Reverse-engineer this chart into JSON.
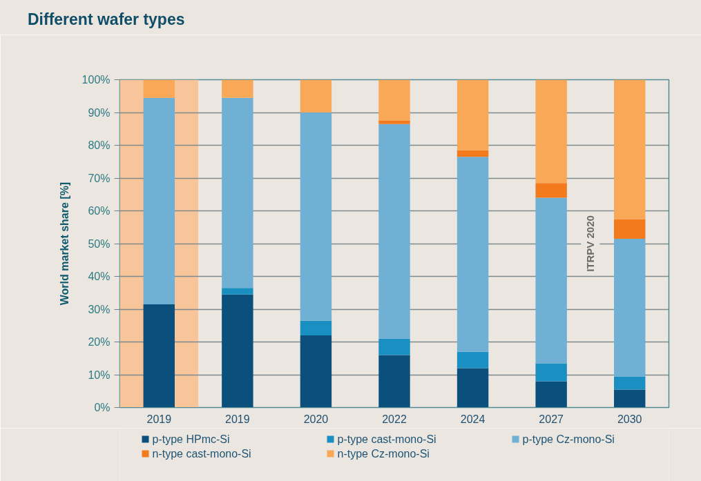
{
  "chart_data": {
    "type": "bar",
    "title": "Different wafer types",
    "ylabel": "World market share [%]",
    "categories": [
      "2019",
      "2019",
      "2020",
      "2022",
      "2024",
      "2027",
      "2030"
    ],
    "stacked": true,
    "series": [
      {
        "name": "p-type HPmc-Si",
        "color": "#0b4f7d",
        "values": [
          31.5,
          34.5,
          22,
          16,
          12,
          8,
          5.5
        ]
      },
      {
        "name": "p-type cast-mono-Si",
        "color": "#1a8fc1",
        "values": [
          null,
          2,
          4.5,
          5,
          5,
          5.5,
          4
        ]
      },
      {
        "name": "p-type Cz-mono-Si",
        "color": "#70b0d5",
        "values": [
          63,
          58,
          63.5,
          65.5,
          59.5,
          50.5,
          42
        ]
      },
      {
        "name": "n-type cast-mono-Si",
        "color": "#f47a1e",
        "values": [
          null,
          null,
          null,
          1,
          2,
          4.5,
          6
        ]
      },
      {
        "name": "n-type Cz-mono-Si",
        "color": "#f9a857",
        "values": [
          5.5,
          5.5,
          10,
          12.5,
          21.5,
          31.5,
          42.5
        ]
      }
    ],
    "ylim": [
      0,
      100
    ],
    "yticks": [
      {
        "value": 0,
        "label": "0%"
      },
      {
        "value": 10,
        "label": "10%"
      },
      {
        "value": 20,
        "label": "20%"
      },
      {
        "value": 30,
        "label": "30%"
      },
      {
        "value": 40,
        "label": "40%"
      },
      {
        "value": 50,
        "label": "50%"
      },
      {
        "value": 60,
        "label": "60%"
      },
      {
        "value": 70,
        "label": "70%"
      },
      {
        "value": 80,
        "label": "80%"
      },
      {
        "value": 90,
        "label": "90%"
      },
      {
        "value": 100,
        "label": "100%"
      }
    ],
    "grid": "y",
    "legend": "bottom",
    "bands": [
      {
        "axis": "x",
        "from": "2019",
        "to": "2019",
        "color": "#f8c59b"
      }
    ],
    "annotations": [
      "ITRPV 2020"
    ]
  }
}
